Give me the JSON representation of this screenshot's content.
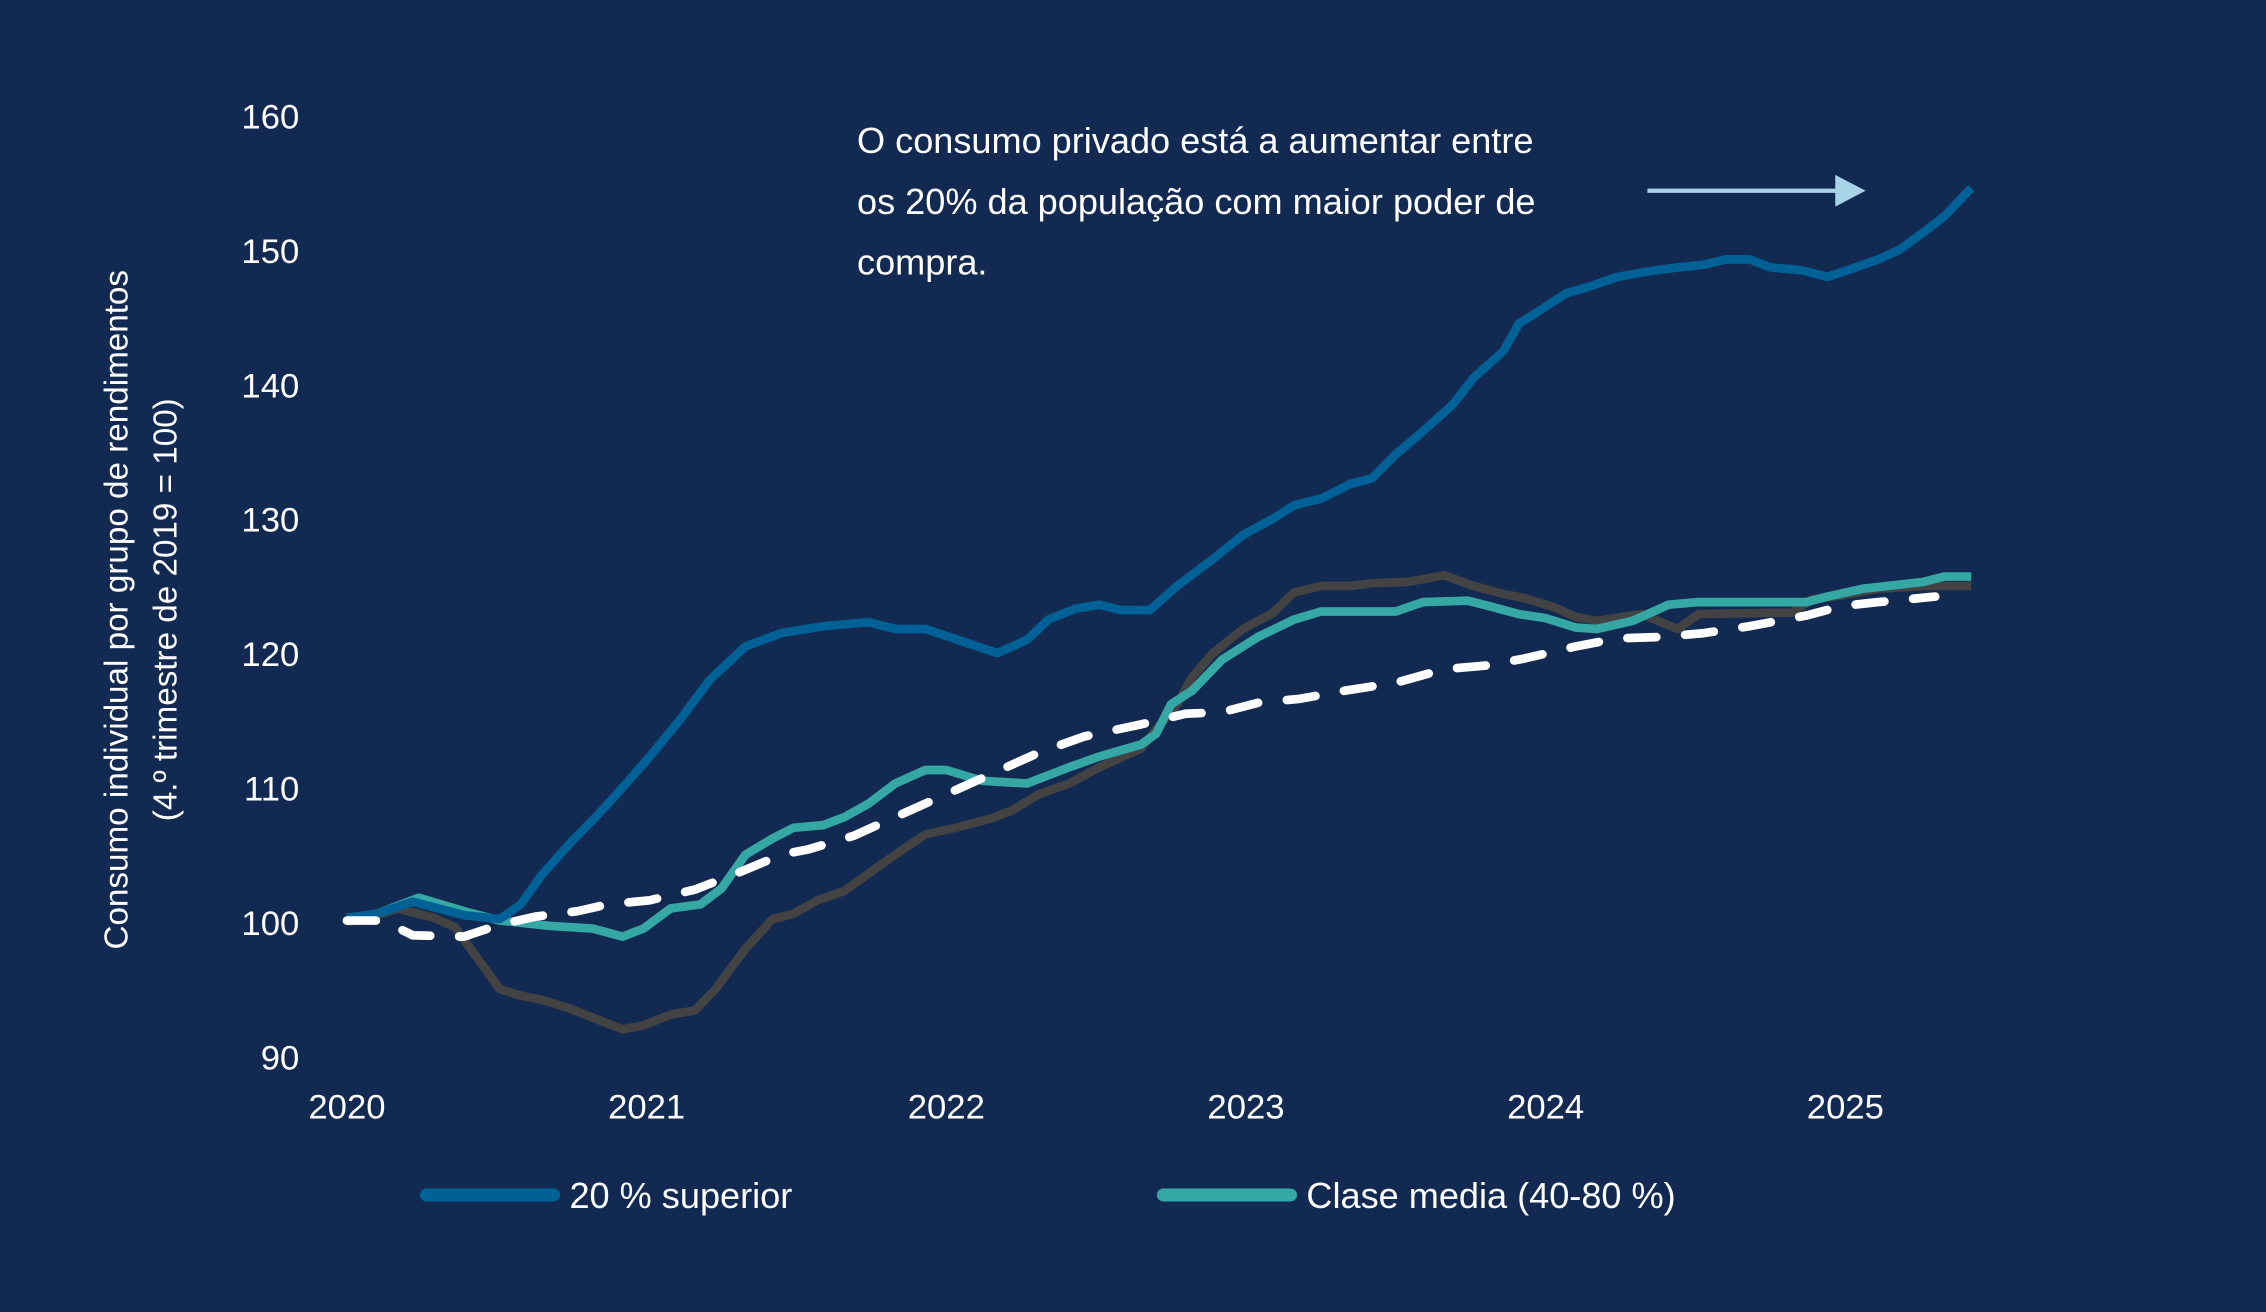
{
  "chart_data": {
    "type": "line",
    "title": "",
    "ylabel_line1": "Consumo individual por grupo de rendimentos",
    "ylabel_line2": "(4.º trimestre de 2019 = 100)",
    "xlabel": "",
    "ylim": [
      90,
      160
    ],
    "yticks": [
      90,
      100,
      110,
      120,
      130,
      140,
      150,
      160
    ],
    "xlim": [
      2020,
      2025.42
    ],
    "xticks": [
      2020,
      2021,
      2022,
      2023,
      2024,
      2025
    ],
    "grid": false,
    "legend_placement": "bottom",
    "annotation": {
      "lines": [
        "O consumo privado está a aumentar entre",
        "os 20% da população com maior poder de",
        "compra."
      ],
      "arrow_color": "#a9d3e6"
    },
    "background_color": "#122a52",
    "series": [
      {
        "name": "20 % superior",
        "color": "#006196",
        "dashed": false,
        "x": [
          2020.0,
          2020.1,
          2020.22,
          2020.39,
          2020.51,
          2020.58,
          2020.65,
          2020.75,
          2020.83,
          2020.92,
          2021.01,
          2021.11,
          2021.21,
          2021.33,
          2021.45,
          2021.59,
          2021.74,
          2021.83,
          2021.93,
          2022.17,
          2022.27,
          2022.34,
          2022.43,
          2022.51,
          2022.58,
          2022.68,
          2022.77,
          2022.89,
          2022.99,
          2023.09,
          2023.16,
          2023.25,
          2023.35,
          2023.42,
          2023.5,
          2023.59,
          2023.69,
          2023.76,
          2023.86,
          2023.91,
          2023.98,
          2024.07,
          2024.15,
          2024.24,
          2024.34,
          2024.44,
          2024.53,
          2024.6,
          2024.68,
          2024.75,
          2024.85,
          2024.94,
          2025.01,
          2025.11,
          2025.18,
          2025.26,
          2025.33,
          2025.42
        ],
        "y": [
          100.3,
          100.6,
          101.5,
          100.5,
          100.2,
          101.3,
          103.5,
          106,
          107.8,
          110,
          112.3,
          115,
          118,
          120.5,
          121.5,
          122,
          122.3,
          121.8,
          121.8,
          120,
          121,
          122.5,
          123.3,
          123.6,
          123.2,
          123.2,
          125,
          127,
          128.8,
          130,
          131,
          131.5,
          132.6,
          133,
          134.8,
          136.5,
          138.5,
          140.5,
          142.5,
          144.5,
          145.5,
          146.8,
          147.3,
          148,
          148.4,
          148.7,
          148.9,
          149.3,
          149.3,
          148.7,
          148.5,
          148,
          148.5,
          149.3,
          150,
          151.3,
          152.5,
          154.6
        ]
      },
      {
        "name": "Clase media (40-80 %)",
        "color": "#35a7a4",
        "dashed": false,
        "x": [
          2020.0,
          2020.1,
          2020.24,
          2020.39,
          2020.51,
          2020.68,
          2020.82,
          2020.92,
          2020.99,
          2021.08,
          2021.18,
          2021.25,
          2021.33,
          2021.42,
          2021.49,
          2021.59,
          2021.66,
          2021.74,
          2021.83,
          2021.93,
          2022.0,
          2022.12,
          2022.27,
          2022.41,
          2022.51,
          2022.65,
          2022.7,
          2022.75,
          2022.82,
          2022.92,
          2023.04,
          2023.16,
          2023.25,
          2023.5,
          2023.59,
          2023.74,
          2023.81,
          2023.91,
          2024.0,
          2024.1,
          2024.17,
          2024.29,
          2024.41,
          2024.51,
          2024.87,
          2024.94,
          2025.06,
          2025.26,
          2025.33,
          2025.42
        ],
        "y": [
          100.2,
          100.6,
          101.8,
          100.8,
          100.1,
          99.7,
          99.5,
          98.9,
          99.5,
          101,
          101.3,
          102.5,
          105,
          106.2,
          107,
          107.2,
          107.8,
          108.8,
          110.3,
          111.3,
          111.3,
          110.5,
          110.3,
          111.5,
          112.3,
          113.2,
          114,
          116.2,
          117.2,
          119.5,
          121.2,
          122.5,
          123.1,
          123.1,
          123.8,
          123.9,
          123.5,
          122.9,
          122.6,
          121.9,
          121.8,
          122.4,
          123.6,
          123.8,
          123.8,
          124.2,
          124.8,
          125.3,
          125.7,
          125.7
        ]
      },
      {
        "color": "#434343",
        "dashed": false,
        "x": [
          2020.0,
          2020.07,
          2020.17,
          2020.29,
          2020.36,
          2020.51,
          2020.58,
          2020.65,
          2020.75,
          2020.84,
          2020.92,
          2020.99,
          2021.08,
          2021.16,
          2021.23,
          2021.33,
          2021.42,
          2021.49,
          2021.57,
          2021.66,
          2021.74,
          2021.83,
          2021.93,
          2022.03,
          2022.15,
          2022.22,
          2022.31,
          2022.41,
          2022.51,
          2022.65,
          2022.7,
          2022.77,
          2022.82,
          2022.89,
          2022.99,
          2023.09,
          2023.16,
          2023.25,
          2023.35,
          2023.42,
          2023.54,
          2023.66,
          2023.76,
          2023.86,
          2023.93,
          2024.03,
          2024.1,
          2024.17,
          2024.32,
          2024.44,
          2024.51,
          2024.75,
          2024.82,
          2024.89,
          2024.99,
          2025.11,
          2025.26,
          2025.42
        ],
        "y": [
          100,
          100.3,
          101,
          100.3,
          99.6,
          95,
          94.5,
          94.2,
          93.5,
          92.7,
          92,
          92.3,
          93.1,
          93.4,
          95,
          98,
          100.2,
          100.6,
          101.6,
          102.3,
          103.6,
          105,
          106.5,
          107,
          107.7,
          108.3,
          109.5,
          110.3,
          111.5,
          112.9,
          114.3,
          116.2,
          118.2,
          120,
          121.8,
          123,
          124.5,
          125,
          125,
          125.2,
          125.3,
          125.8,
          125,
          124.4,
          124.1,
          123.4,
          122.7,
          122.4,
          122.9,
          121.8,
          122.9,
          123,
          123,
          124,
          124.3,
          124.8,
          125,
          125
        ]
      },
      {
        "color": "#ffffff",
        "dashed": true,
        "x": [
          2020.0,
          2020.12,
          2020.22,
          2020.39,
          2020.51,
          2020.63,
          2020.77,
          2020.87,
          2021.01,
          2021.16,
          2021.3,
          2021.45,
          2021.54,
          2021.69,
          2021.88,
          2022.03,
          2022.17,
          2022.31,
          2022.46,
          2022.65,
          2022.8,
          2022.92,
          2023.04,
          2023.18,
          2023.33,
          2023.5,
          2023.66,
          2023.81,
          2023.93,
          2024.1,
          2024.24,
          2024.39,
          2024.53,
          2024.68,
          2024.87,
          2024.99,
          2025.11,
          2025.3
        ],
        "y": [
          100.1,
          100.1,
          99,
          98.9,
          99.8,
          100.4,
          100.8,
          101.3,
          101.6,
          102.4,
          103.6,
          105,
          105.4,
          106.4,
          108.3,
          109.8,
          111.2,
          112.6,
          113.8,
          114.7,
          115.5,
          115.6,
          116.3,
          116.6,
          117.2,
          117.8,
          118.8,
          119.1,
          119.6,
          120.5,
          121.1,
          121.2,
          121.5,
          122,
          122.8,
          123.5,
          123.8,
          124.2
        ]
      }
    ]
  }
}
